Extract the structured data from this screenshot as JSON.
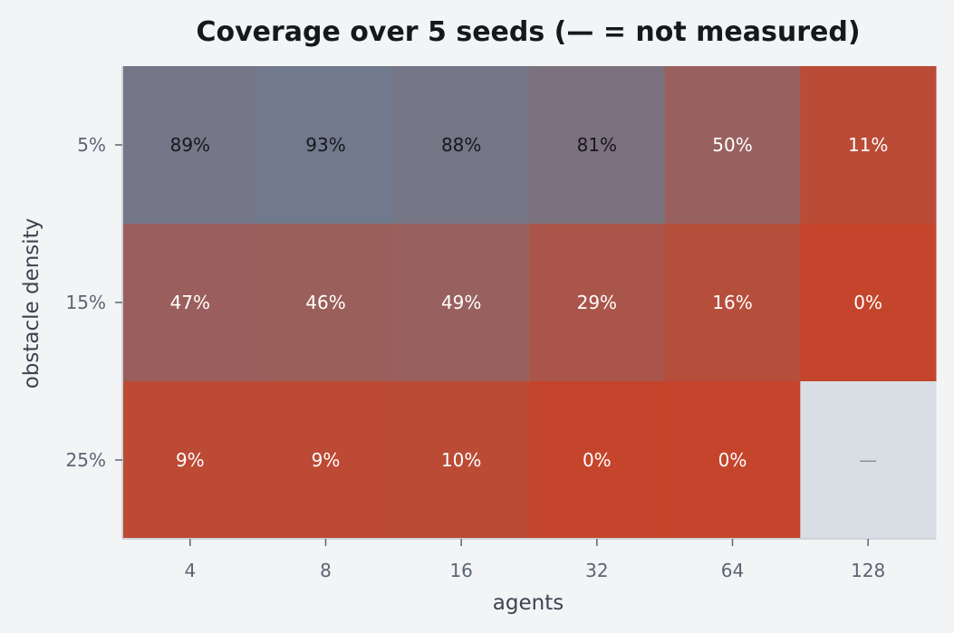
{
  "chart_data": {
    "type": "heatmap",
    "title": "Coverage over 5 seeds (— = not measured)",
    "xlabel": "agents",
    "ylabel": "obstacle density",
    "x_categories": [
      "4",
      "8",
      "16",
      "32",
      "64",
      "128"
    ],
    "y_categories": [
      "5%",
      "15%",
      "25%"
    ],
    "values": [
      [
        89,
        93,
        88,
        81,
        50,
        11
      ],
      [
        47,
        46,
        49,
        29,
        16,
        0
      ],
      [
        9,
        9,
        10,
        0,
        0,
        null
      ]
    ],
    "cell_labels": [
      [
        "89%",
        "93%",
        "88%",
        "81%",
        "50%",
        "11%"
      ],
      [
        "47%",
        "46%",
        "49%",
        "29%",
        "16%",
        "0%"
      ],
      [
        "9%",
        "9%",
        "10%",
        "0%",
        "0%",
        "—"
      ]
    ],
    "unit": "%",
    "value_range": [
      0,
      100
    ],
    "colors": {
      "low": "#c4452b",
      "high": "#6b7d93",
      "missing": "#d9dee5",
      "missing_text": "#8a929c",
      "dark_text": "#16181d",
      "light_text": "#ffffff",
      "background": "#f3f4f6",
      "axis_spine": "#d0d4da"
    },
    "grid": false,
    "legend": "none"
  }
}
